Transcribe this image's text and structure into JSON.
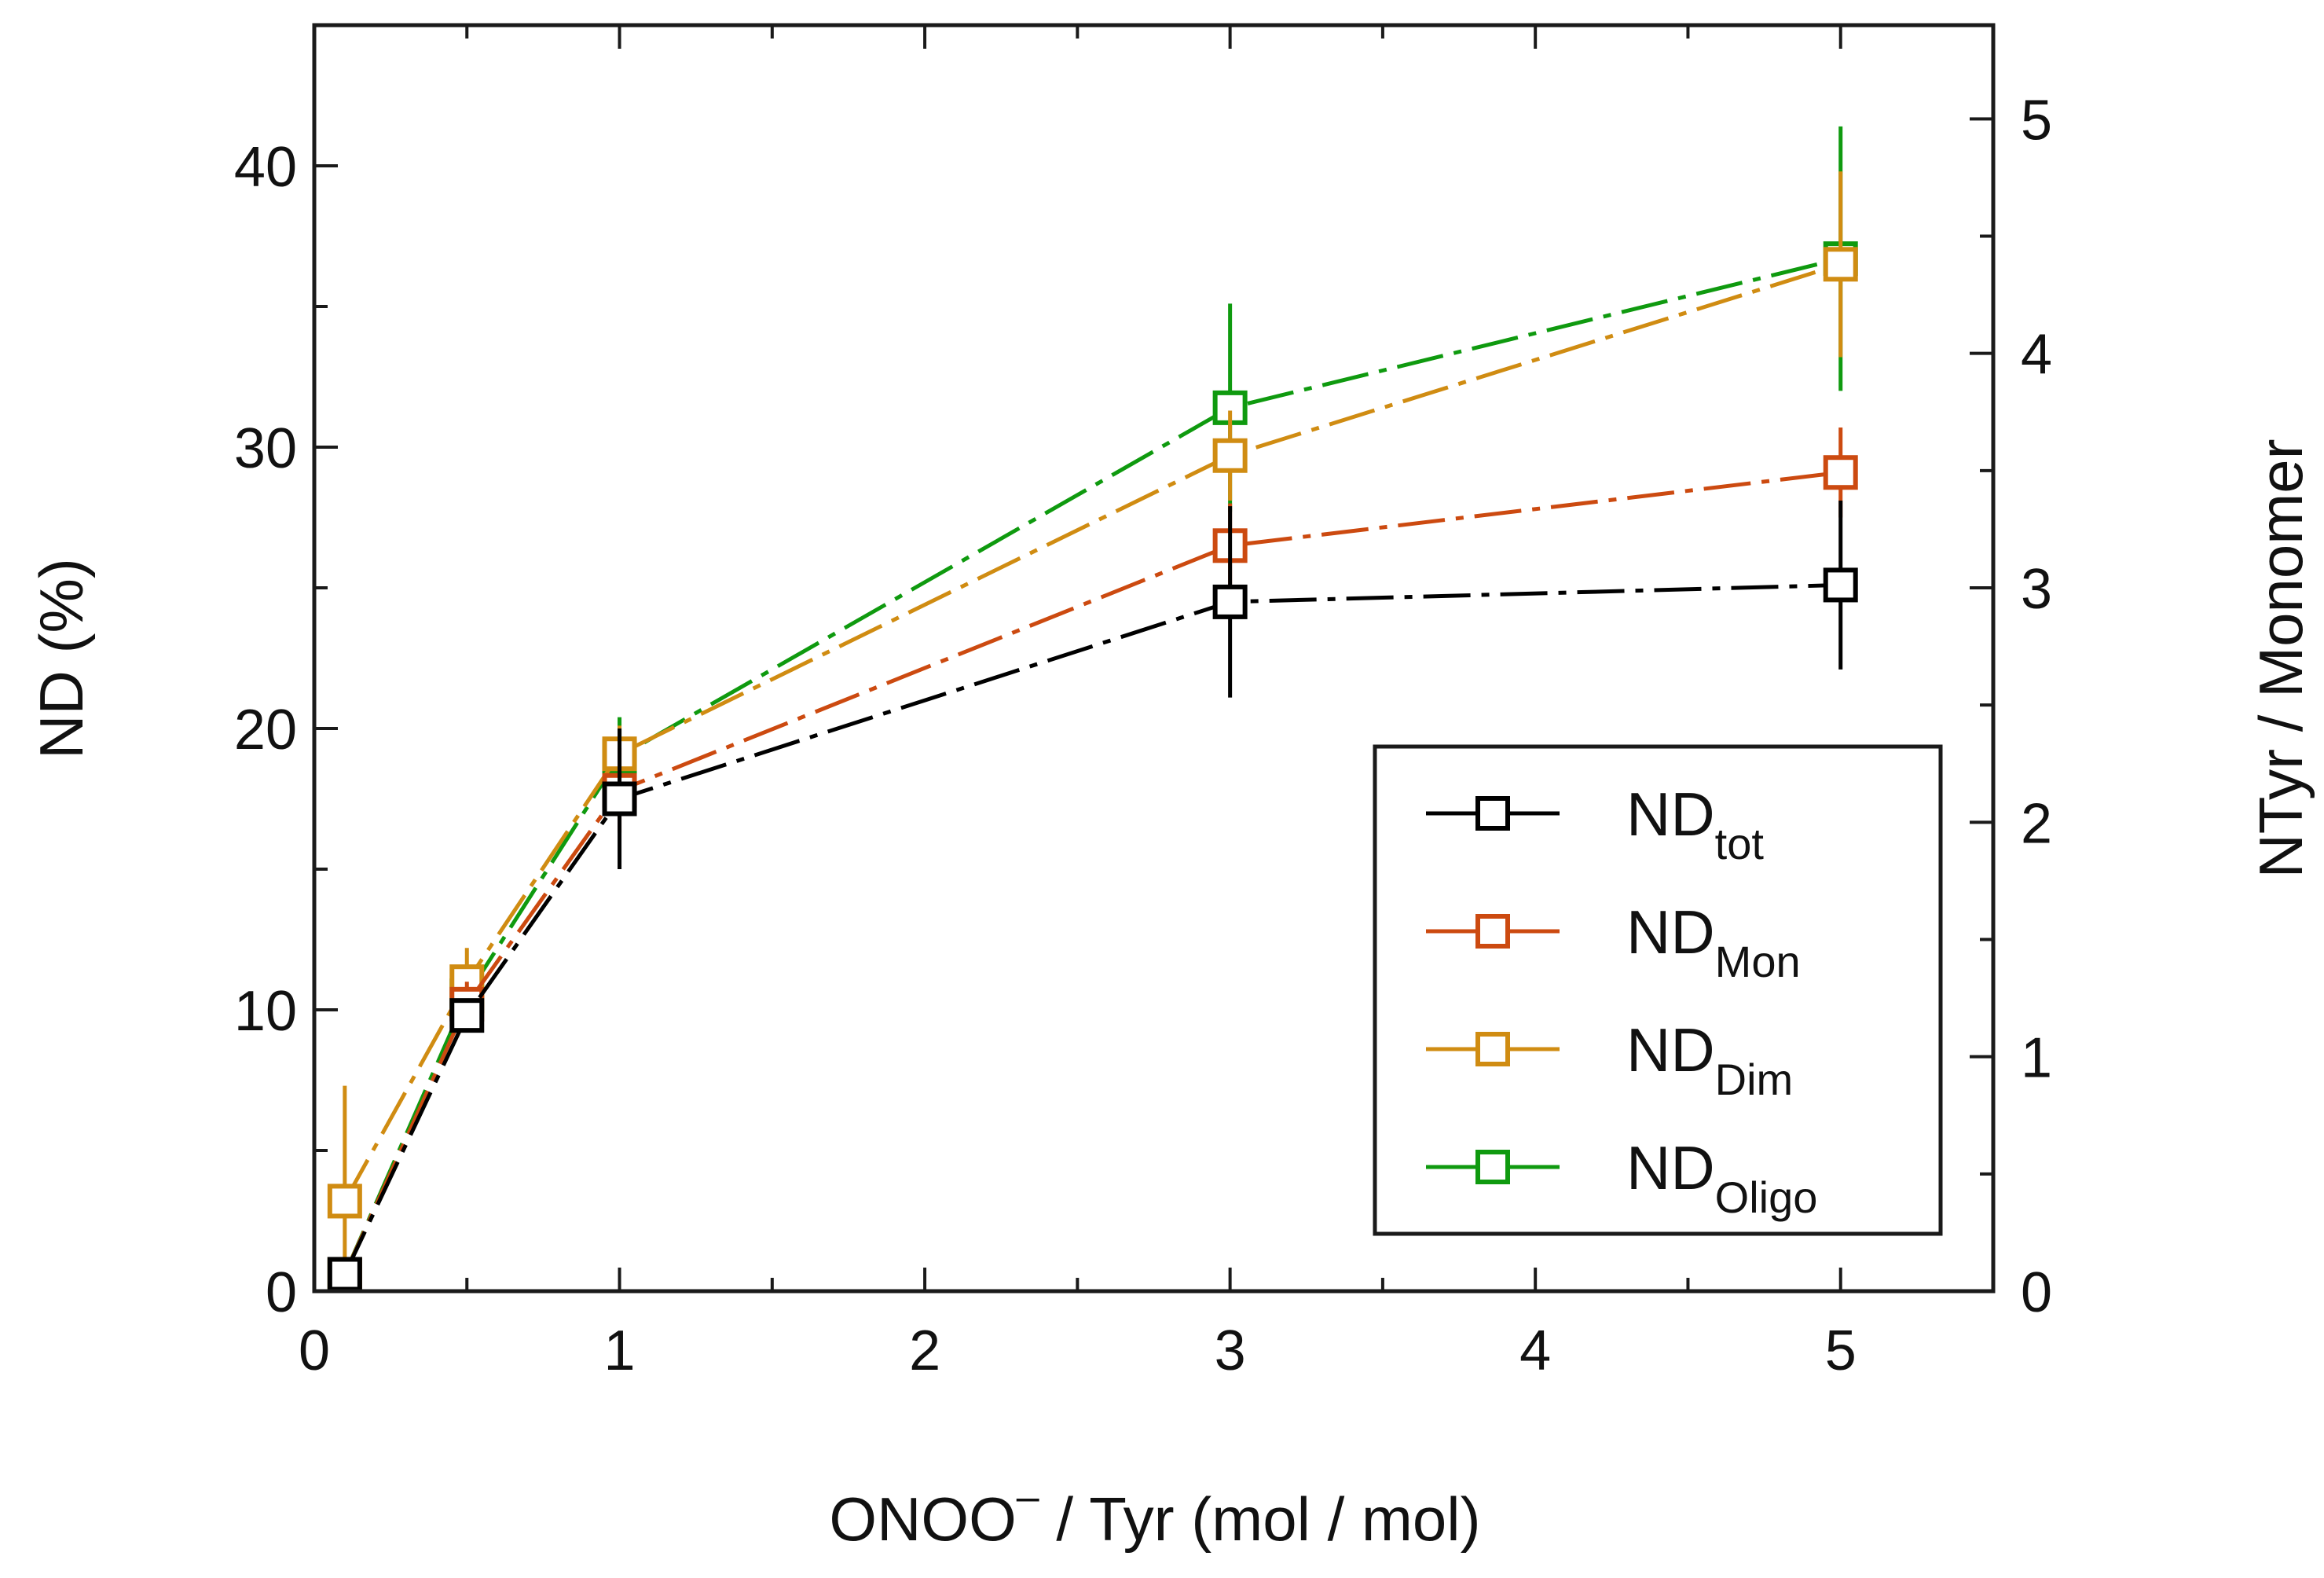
{
  "chart_data": {
    "type": "line",
    "xlabel": {
      "main": "ONOO",
      "sup": "–",
      "rest": " / Tyr (mol / mol)"
    },
    "ylabel": "ND (%)",
    "y2label": "NTyr / Monomer",
    "xlim": [
      0,
      5.5
    ],
    "ylim": [
      0,
      45
    ],
    "y2lim": [
      0,
      5.4
    ],
    "x_ticks": [
      0,
      1,
      2,
      3,
      4,
      5
    ],
    "y_ticks": [
      0,
      10,
      20,
      30,
      40
    ],
    "y2_ticks": [
      0,
      1,
      2,
      3,
      4,
      5
    ],
    "legend_position": "lower-right",
    "series": [
      {
        "name": "ND",
        "sub": "tot",
        "color": "#000000",
        "x": [
          0.1,
          0.5,
          1,
          3,
          5
        ],
        "y": [
          0.6,
          9.8,
          17.5,
          24.5,
          25.1
        ],
        "err": [
          0.6,
          0.6,
          2.5,
          3.4,
          3.0
        ]
      },
      {
        "name": "ND",
        "sub": "Mon",
        "color": "#cc4a10",
        "x": [
          0.1,
          0.5,
          1,
          3,
          5
        ],
        "y": [
          0.6,
          10.2,
          17.8,
          26.5,
          29.1
        ],
        "err": [
          0.6,
          0.8,
          1.5,
          1.5,
          1.6
        ]
      },
      {
        "name": "ND",
        "sub": "Dim",
        "color": "#d08c12",
        "x": [
          0.1,
          0.5,
          1,
          3,
          5
        ],
        "y": [
          3.2,
          11.0,
          19.1,
          29.7,
          36.5
        ],
        "err": [
          4.1,
          1.2,
          1.0,
          1.6,
          3.3
        ]
      },
      {
        "name": "ND",
        "sub": "Oligo",
        "color": "#0f9a0f",
        "x": [
          0.1,
          0.5,
          1,
          3,
          5
        ],
        "y": [
          0.6,
          10.5,
          19.0,
          31.4,
          36.7
        ],
        "err": [
          0.5,
          1.0,
          1.4,
          3.7,
          4.7
        ]
      }
    ]
  }
}
